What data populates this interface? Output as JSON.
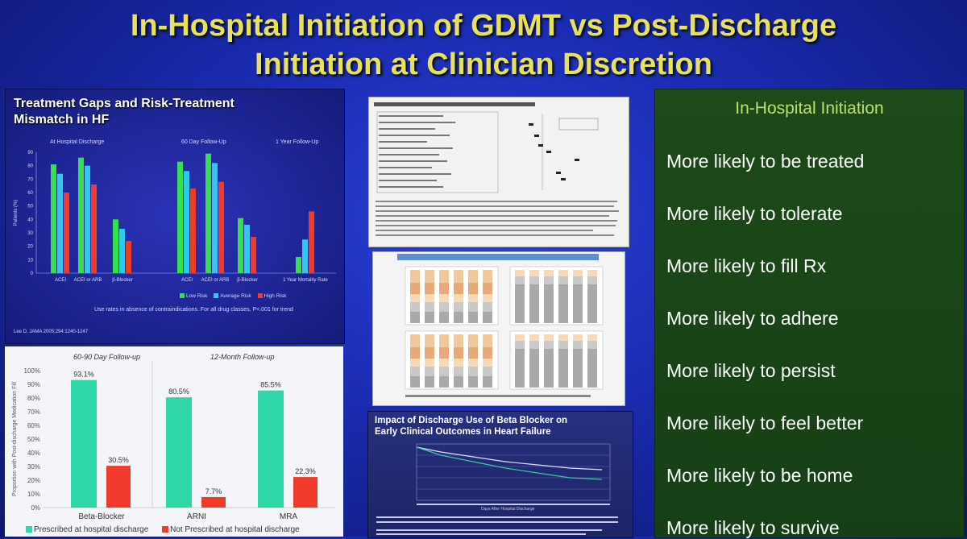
{
  "slide": {
    "title_line1": "In-Hospital Initiation of GDMT vs Post-Discharge",
    "title_line2": "Initiation at Clinician Discretion"
  },
  "top_left": {
    "title_line1": "Treatment Gaps and Risk-Treatment",
    "title_line2": "Mismatch in HF",
    "groups": [
      "At Hospital Discharge",
      "60 Day Follow-Up",
      "1 Year Follow-Up"
    ],
    "ylabel": "Patients (%)",
    "footnote": "Use rates in absence of contraindications. For all drug classes, P<.001 for trend",
    "citation": "Lee D. JAMA 2005;294:1240-1247",
    "legend": [
      "Low Risk",
      "Average Risk",
      "High Risk"
    ],
    "colors": {
      "low": "#35e04a",
      "avg": "#2fc9f0",
      "high": "#f03a2a"
    }
  },
  "chart_data": [
    {
      "type": "bar",
      "title": "Treatment Gaps and Risk-Treatment Mismatch in HF",
      "ylabel": "Patients (%)",
      "ylim": [
        0,
        90
      ],
      "yticks": [
        "90",
        "80",
        "70",
        "60",
        "50",
        "40",
        "30",
        "20",
        "10",
        "0"
      ],
      "categories": [
        "ACEI",
        "ACEI or ARB",
        "β-Blocker",
        "ACEI",
        "ACEI or ARB",
        "β-Blocker",
        "1 Year Mortality Rate"
      ],
      "series": [
        {
          "name": "Low Risk",
          "values": [
            81,
            86,
            40,
            83,
            89,
            41,
            12
          ]
        },
        {
          "name": "Average Risk",
          "values": [
            74,
            80,
            33,
            76,
            82,
            36,
            25
          ]
        },
        {
          "name": "High Risk",
          "values": [
            60,
            66,
            24,
            63,
            68,
            27,
            46
          ]
        }
      ]
    },
    {
      "type": "bar",
      "ylabel": "Proportion with Post-discharge Medication Fill",
      "ylim": [
        0,
        100
      ],
      "yticks": [
        "100%",
        "90%",
        "80%",
        "70%",
        "60%",
        "50%",
        "40%",
        "30%",
        "20%",
        "10%",
        "0%"
      ],
      "subtitles": [
        "60-90 Day Follow-up",
        "12-Month Follow-up"
      ],
      "categories": [
        "Beta-Blocker",
        "ARNI",
        "MRA"
      ],
      "series": [
        {
          "name": "Prescribed at hospital discharge",
          "values": [
            93.1,
            80.5,
            85.5
          ],
          "labels": [
            "93.1%",
            "80.5%",
            "85.5%"
          ]
        },
        {
          "name": "Not Prescribed at hospital discharge",
          "values": [
            30.5,
            7.7,
            22.3
          ],
          "labels": [
            "30.5%",
            "7.7%",
            "22.3%"
          ]
        }
      ],
      "colors": {
        "prescribed": "#2fd6a8",
        "not": "#f03a2a"
      }
    }
  ],
  "bottom_left": {
    "legend_prescribed": "Prescribed at hospital discharge",
    "legend_not": "Not Prescribed at hospital discharge"
  },
  "center": {
    "beta_title_line1": "Impact of Discharge Use of Beta Blocker on",
    "beta_title_line2": "Early Clinical Outcomes in Heart Failure",
    "beta_xlabel": "Days After Hospital Discharge"
  },
  "right_panel": {
    "heading": "In-Hospital Initiation",
    "items": [
      "More likely to be treated",
      "More likely to tolerate",
      "More likely to fill Rx",
      "More likely to adhere",
      "More likely to persist",
      "More likely to feel better",
      "More likely to be home",
      "More likely to survive"
    ]
  }
}
